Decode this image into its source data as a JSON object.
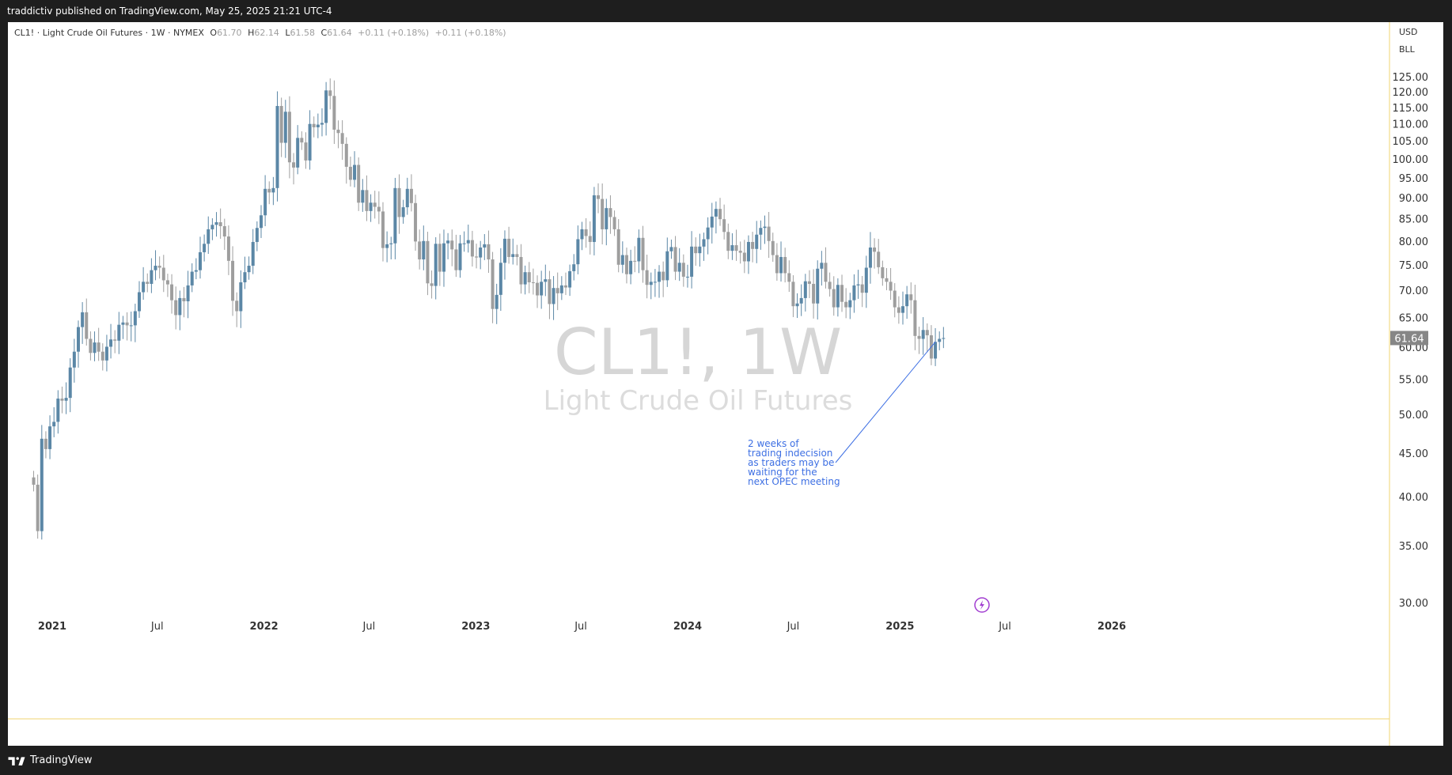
{
  "header": {
    "publish_line": "traddictiv published on TradingView.com, May 25, 2025 21:21 UTC-4"
  },
  "legend": {
    "symbol_line": "CL1! · Light Crude Oil Futures · 1W · NYMEX",
    "o_label": "O",
    "o_value": "61.70",
    "h_label": "H",
    "h_value": "62.14",
    "l_label": "L",
    "l_value": "61.58",
    "c_label": "C",
    "c_value": "61.64",
    "change": "+0.11 (+0.18%)",
    "change2": "+0.11 (+0.18%)"
  },
  "watermark": {
    "symbol": "CL1!, 1W",
    "name": "Light Crude Oil Futures"
  },
  "price_scale": {
    "currency": "USD",
    "unit": "BLL",
    "last_price": "61.64"
  },
  "annotation": {
    "lines": [
      "2 weeks of",
      "trading indecision",
      "as traders may be",
      "waiting for the",
      "next OPEC meeting"
    ]
  },
  "footer": {
    "brand": "TradingView"
  },
  "colors": {
    "up": "#5b87a6",
    "down": "#9e9e9e",
    "annotation": "#3d6fe3",
    "border": "#f2d472",
    "last_price_bg": "#868686",
    "watermark": "#d6d6d6"
  },
  "chart_data": {
    "type": "candlestick",
    "y_scale": "log",
    "ylim": [
      29,
      140
    ],
    "yticks": [
      30,
      35,
      40,
      45,
      50,
      55,
      60,
      65,
      70,
      75,
      80,
      85,
      90,
      95,
      100,
      105,
      110,
      115,
      120,
      125
    ],
    "ytick_labels": [
      "30.00",
      "35.00",
      "40.00",
      "45.00",
      "50.00",
      "55.00",
      "60.00",
      "65.00",
      "70.00",
      "75.00",
      "80.00",
      "85.00",
      "90.00",
      "95.00",
      "100.00",
      "105.00",
      "110.00",
      "115.00",
      "120.00",
      "125.00"
    ],
    "x_labels": [
      {
        "label": "2021",
        "date": "2021-01-01",
        "bold": true
      },
      {
        "label": "Jul",
        "date": "2021-07-01",
        "bold": false
      },
      {
        "label": "2022",
        "date": "2022-01-01",
        "bold": true
      },
      {
        "label": "Jul",
        "date": "2022-07-01",
        "bold": false
      },
      {
        "label": "2023",
        "date": "2023-01-01",
        "bold": true
      },
      {
        "label": "Jul",
        "date": "2023-07-01",
        "bold": false
      },
      {
        "label": "2024",
        "date": "2024-01-01",
        "bold": true
      },
      {
        "label": "Jul",
        "date": "2024-07-01",
        "bold": false
      },
      {
        "label": "2025",
        "date": "2025-01-01",
        "bold": true
      },
      {
        "label": "Jul",
        "date": "2025-07-01",
        "bold": false
      },
      {
        "label": "2026",
        "date": "2026-01-01",
        "bold": true
      }
    ],
    "first_week": "2020-11-30",
    "interval": "1W",
    "close": [
      41.4,
      36.5,
      46.9,
      45.6,
      48.5,
      49.1,
      52.3,
      52.0,
      52.4,
      56.9,
      59.4,
      63.5,
      66.1,
      61.5,
      59.2,
      60.9,
      59.4,
      58.0,
      60.2,
      61.4,
      61.2,
      63.9,
      64.3,
      63.8,
      63.8,
      66.3,
      69.8,
      71.8,
      71.4,
      74.1,
      75.0,
      74.6,
      72.1,
      71.3,
      68.3,
      65.6,
      68.7,
      68.1,
      71.1,
      73.8,
      74.1,
      77.8,
      79.6,
      82.8,
      83.8,
      84.4,
      83.5,
      81.2,
      76.0,
      68.2,
      66.3,
      71.7,
      73.7,
      75.0,
      80.0,
      83.1,
      86.0,
      92.4,
      91.5,
      92.6,
      115.7,
      104.7,
      113.9,
      99.3,
      97.9,
      106.1,
      104.8,
      99.8,
      110.2,
      109.2,
      110.0,
      110.5,
      120.7,
      118.9,
      108.5,
      107.5,
      104.4,
      98.1,
      94.7,
      98.6,
      89.0,
      92.1,
      87.0,
      89.0,
      88.0,
      86.9,
      78.7,
      79.5,
      79.7,
      92.6,
      85.6,
      87.9,
      92.4,
      88.9,
      80.1,
      76.3,
      80.2,
      71.5,
      71.0,
      79.6,
      73.8,
      79.7,
      80.3,
      78.4,
      74.1,
      79.7,
      79.7,
      80.4,
      76.9,
      76.7,
      78.8,
      79.5,
      76.3,
      66.7,
      69.3,
      75.6,
      80.7,
      76.8,
      77.4,
      76.8,
      71.3,
      73.7,
      71.7,
      71.6,
      69.2,
      71.8,
      72.3,
      67.6,
      70.6,
      69.6,
      71.1,
      70.7,
      73.9,
      75.3,
      80.6,
      82.8,
      81.3,
      80.0,
      90.8,
      89.9,
      82.8,
      87.7,
      85.6,
      82.8,
      75.2,
      77.2,
      73.3,
      76.0,
      75.9,
      80.9,
      74.1,
      71.2,
      71.8,
      71.8,
      73.8,
      72.1,
      78.0,
      78.9,
      73.8,
      75.6,
      72.8,
      72.8,
      79.0,
      77.6,
      79.0,
      80.6,
      83.2,
      85.7,
      87.5,
      85.1,
      82.2,
      78.1,
      79.3,
      78.1,
      77.7,
      75.9,
      80.0,
      78.5,
      81.6,
      83.1,
      83.4,
      80.2,
      77.2,
      73.5,
      76.8,
      73.5,
      71.8,
      67.2,
      67.7,
      68.7,
      71.9,
      71.4,
      67.7,
      74.4,
      75.6,
      71.8,
      70.4,
      67.0,
      71.2,
      68.0,
      67.0,
      68.3,
      71.1,
      71.3,
      69.7,
      74.6,
      78.8,
      77.9,
      74.7,
      72.5,
      71.8,
      70.1,
      67.0,
      66.0,
      67.2,
      69.4,
      68.3,
      61.99,
      61.5,
      63.0,
      62.1,
      58.3,
      61.0,
      61.5,
      61.64
    ],
    "volatility_hint": "weekly"
  }
}
